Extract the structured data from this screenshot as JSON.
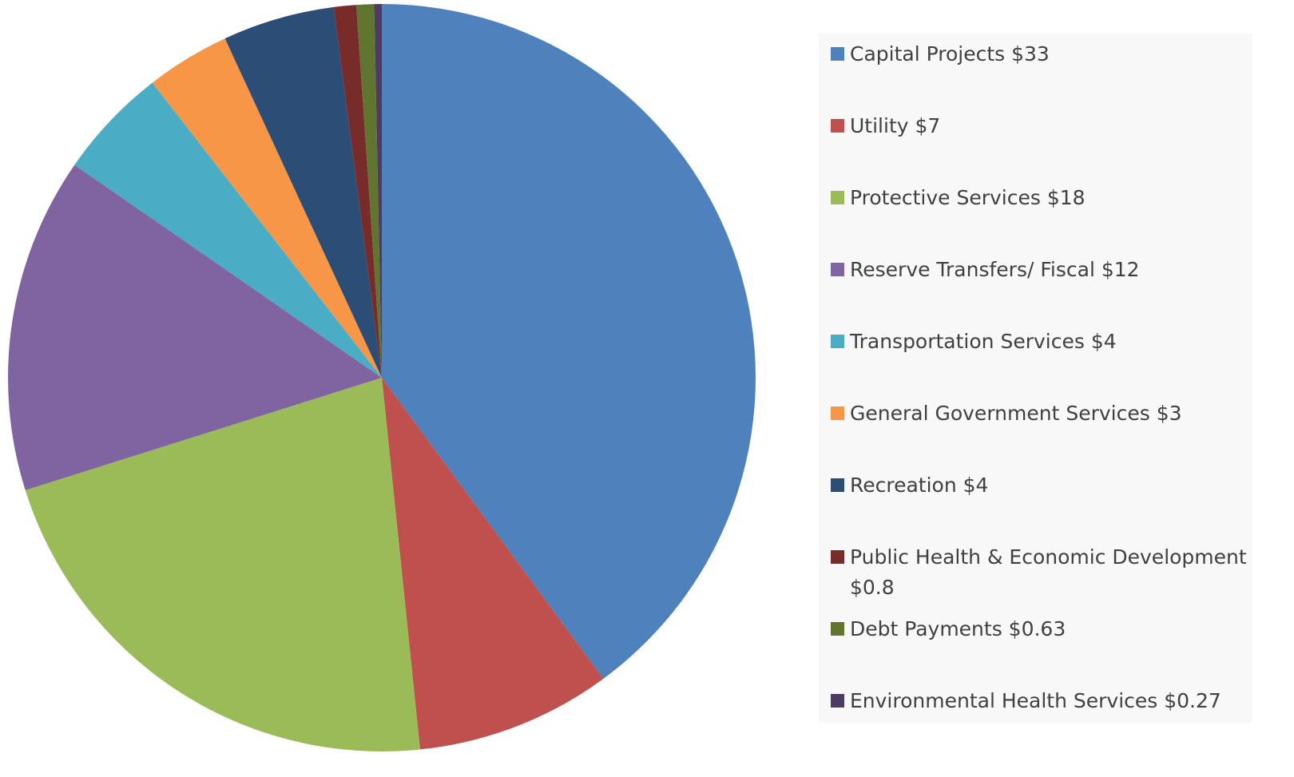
{
  "chart_data": {
    "type": "pie",
    "categories": [
      "Capital Projects $33",
      "Utility $7",
      "Protective Services $18",
      "Reserve Transfers/ Fiscal $12",
      "Transportation Services $4",
      "General Government Services $3",
      "Recreation $4",
      "Public Health & Economic Development $0.8",
      "Debt Payments $0.63",
      "Environmental Health Services $0.27"
    ],
    "values": [
      33,
      7,
      18,
      12,
      4,
      3,
      4,
      0.8,
      0.63,
      0.27
    ],
    "colors": [
      "#4f81bd",
      "#c0504d",
      "#9bbb59",
      "#8064a2",
      "#4bacc6",
      "#f79646",
      "#2c4d75",
      "#772c2a",
      "#5f7530",
      "#4d3b62"
    ],
    "legend": "right"
  }
}
